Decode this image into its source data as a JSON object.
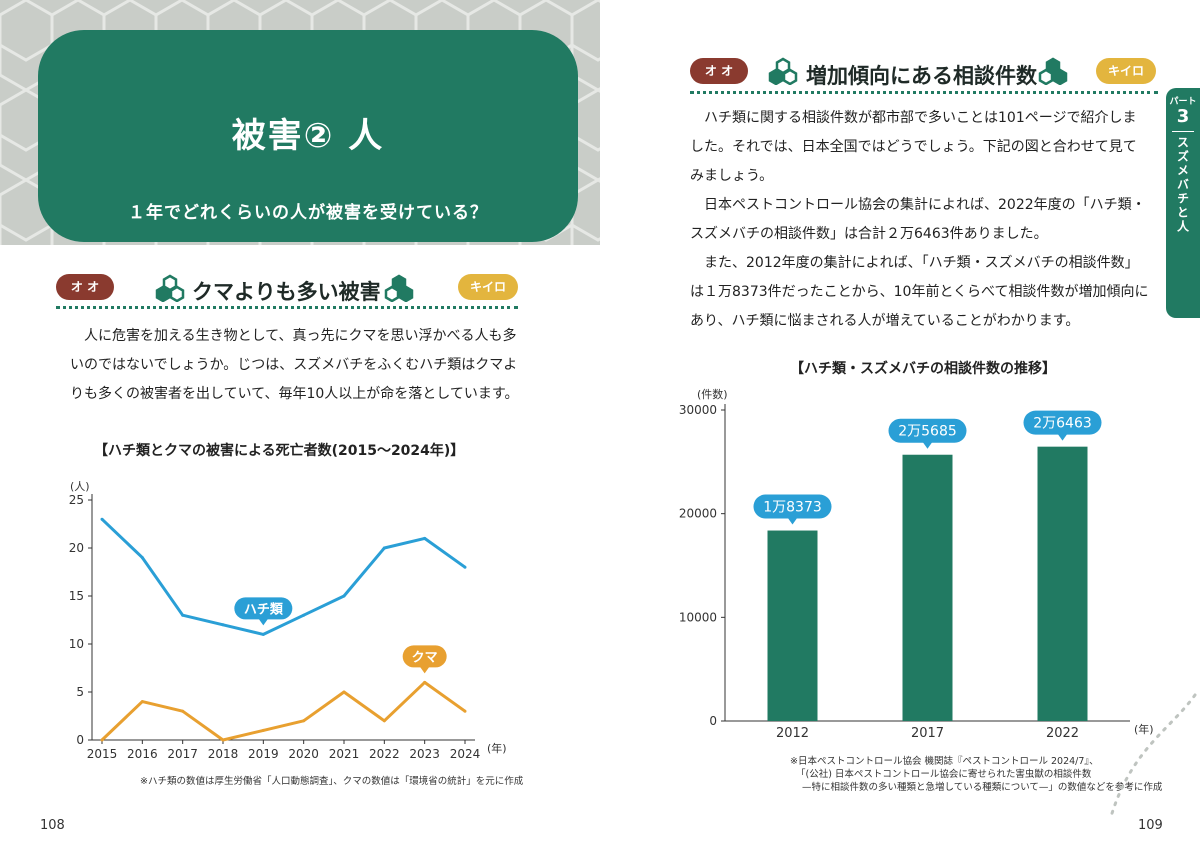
{
  "left_page": {
    "heading": {
      "title": "被害② 人",
      "subtitle": "１年でどれくらいの人が被害を受けている？"
    },
    "section": {
      "tag_left": "オ オ",
      "title": "クマよりも多い被害",
      "tag_right": "キイロ"
    },
    "paragraph": [
      "人に危害を加える生き物として、真っ先にクマを思い浮かべる人も多",
      "いのではないでしょうか。じつは、スズメバチをふくむハチ類はクマよ",
      "りも多くの被害者を出していて、毎年10人以上が命を落としています。"
    ],
    "chart_title": "【ハチ類とクマの被害による死亡者数(2015〜2024年)】",
    "chart_note": "※ハチ類の数値は厚生労働省「人口動態調査」、クマの数値は「環境省の統計」を元に作成",
    "page_number": "108"
  },
  "right_page": {
    "section": {
      "tag_left": "オ オ",
      "title": "増加傾向にある相談件数",
      "tag_right": "キイロ"
    },
    "paragraphs": [
      "ハチ類に関する相談件数が都市部で多いことは101ページで紹介しま",
      "した。それでは、日本全国ではどうでしょう。下記の図と合わせて見て",
      "みましょう。",
      "日本ペストコントロール協会の集計によれば、2022年度の「ハチ類・",
      "スズメバチの相談件数」は合計２万6463件ありました。",
      "また、2012年度の集計によれば、「ハチ類・スズメバチの相談件数」",
      "は１万8373件だったことから、10年前とくらべて相談件数が増加傾向に",
      "あり、ハチ類に悩まされる人が増えていることがわかります。"
    ],
    "chart_title": "【ハチ類・スズメバチの相談件数の推移】",
    "chart_notes": [
      "※日本ペストコントロール協会 機関誌『ペストコントロール 2024/7』、",
      "「(公社) 日本ペストコントロール協会に寄せられた害虫獣の相談件数",
      "—特に相談件数の多い種類と急増している種類について—」の数値などを参考に作成"
    ],
    "page_number": "109",
    "part_tab": {
      "label": "パート",
      "number": "3",
      "title": "スズメバチと人"
    }
  },
  "colors": {
    "green": "#217a62",
    "blue": "#2a9fd6",
    "orange": "#e8a030",
    "brown": "#8a3a2f",
    "yellow": "#e3b53e"
  },
  "chart_data": [
    {
      "type": "line",
      "x": [
        "2015",
        "2016",
        "2017",
        "2018",
        "2019",
        "2020",
        "2021",
        "2022",
        "2023",
        "2024"
      ],
      "ylim": [
        0,
        25
      ],
      "yticks": [
        "0",
        "5",
        "10",
        "15",
        "20",
        "25"
      ],
      "ylabel": "(人)",
      "xlabel": "(年)",
      "series": [
        {
          "name": "ハチ類",
          "color": "#2a9fd6",
          "values": [
            23,
            19,
            13,
            12,
            11,
            13,
            15,
            20,
            21,
            18
          ]
        },
        {
          "name": "クマ",
          "color": "#e8a030",
          "values": [
            0,
            4,
            3,
            0,
            1,
            2,
            5,
            2,
            6,
            3
          ]
        }
      ]
    },
    {
      "type": "bar",
      "categories": [
        "2012",
        "2017",
        "2022"
      ],
      "values": [
        18373,
        25685,
        26463
      ],
      "data_labels": [
        "1万8373",
        "2万5685",
        "2万6463"
      ],
      "ylim": [
        0,
        30000
      ],
      "yticks": [
        "0",
        "10000",
        "20000",
        "30000"
      ],
      "ylabel": "(件数)",
      "xlabel": "(年)",
      "color": "#217a62"
    }
  ]
}
